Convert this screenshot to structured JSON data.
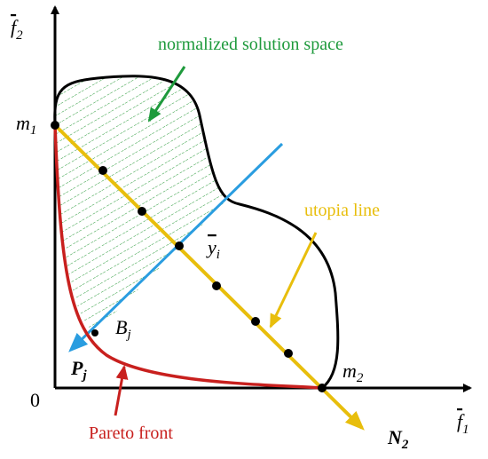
{
  "axes": {
    "y_label": {
      "base": "f",
      "sub": "2"
    },
    "x_label": {
      "base": "f",
      "sub": "1"
    },
    "origin": "0"
  },
  "points": {
    "m1": {
      "base": "m",
      "sub": "1"
    },
    "m2": {
      "base": "m",
      "sub": "2"
    },
    "y_i": {
      "base": "y",
      "sub": "i"
    },
    "B_j": {
      "base": "B",
      "sub": "j"
    },
    "P_j": {
      "base": "P",
      "sub": "j"
    },
    "N_2": {
      "base": "N",
      "sub": "2"
    }
  },
  "annotations": {
    "solution_space": "normalized solution space",
    "utopia": "utopia line",
    "pareto": "Pareto front"
  }
}
